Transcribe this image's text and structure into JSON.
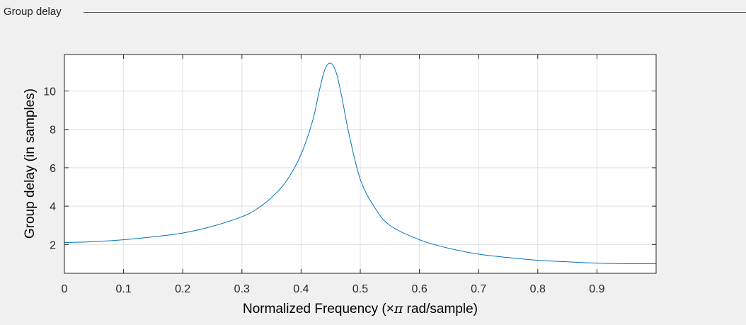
{
  "panel": {
    "title": "Group delay"
  },
  "chart_data": {
    "type": "line",
    "xlabel_parts": [
      "Normalized Frequency (",
      "×",
      "π",
      " rad/sample)"
    ],
    "ylabel": "Group delay (in samples)",
    "xlim": [
      0,
      1
    ],
    "ylim": [
      0.5,
      11.9
    ],
    "x_ticks": [
      0,
      0.1,
      0.2,
      0.3,
      0.4,
      0.5,
      0.6,
      0.7,
      0.8,
      0.9
    ],
    "x_tick_labels": [
      "0",
      "0.1",
      "0.2",
      "0.3",
      "0.4",
      "0.5",
      "0.6",
      "0.7",
      "0.8",
      "0.9"
    ],
    "y_ticks": [
      2,
      4,
      6,
      8,
      10
    ],
    "y_tick_labels": [
      "2",
      "4",
      "6",
      "8",
      "10"
    ],
    "grid": true,
    "line_color": "#0072bd",
    "series": [
      {
        "x": [
          0,
          0.05,
          0.1,
          0.15,
          0.2,
          0.25,
          0.3,
          0.325,
          0.35,
          0.375,
          0.4,
          0.42,
          0.43,
          0.44,
          0.45,
          0.46,
          0.47,
          0.48,
          0.5,
          0.525,
          0.55,
          0.6,
          0.65,
          0.7,
          0.75,
          0.8,
          0.85,
          0.9,
          0.95,
          1.0
        ],
        "y": [
          2.1,
          2.15,
          2.25,
          2.4,
          2.6,
          2.95,
          3.45,
          3.85,
          4.45,
          5.3,
          6.7,
          8.5,
          9.9,
          11.1,
          11.45,
          10.9,
          9.5,
          7.9,
          5.4,
          3.9,
          3.0,
          2.25,
          1.8,
          1.5,
          1.32,
          1.18,
          1.1,
          1.03,
          1.0,
          1.0
        ]
      }
    ]
  }
}
